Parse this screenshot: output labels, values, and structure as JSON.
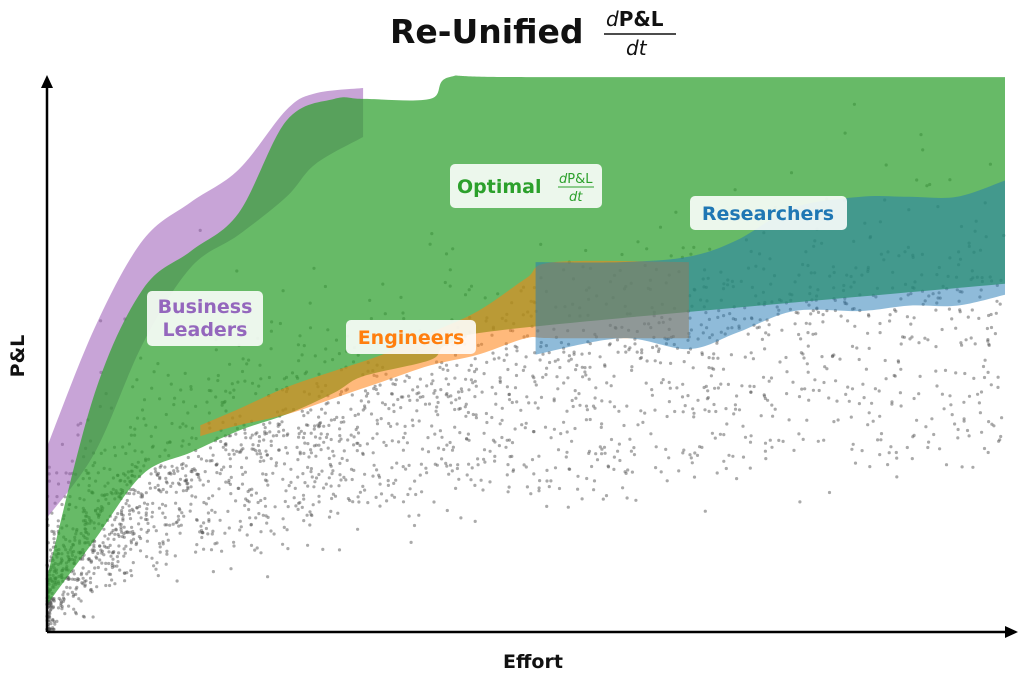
{
  "chart_data": {
    "type": "area",
    "title": {
      "prefix": "Re-Unified",
      "fraction_numerator_italic": "d",
      "fraction_numerator": "P&L",
      "fraction_denominator": "dt"
    },
    "xlabel": "Effort",
    "ylabel": "P&L",
    "xlim": [
      0,
      1
    ],
    "ylim": [
      0,
      1
    ],
    "grid": false,
    "legend": "none",
    "series": [
      {
        "name": "Business Leaders",
        "label_lines": [
          "Business",
          "Leaders"
        ],
        "color": "#9b59b6",
        "x": [
          0.0,
          0.05,
          0.1,
          0.15,
          0.2,
          0.25,
          0.28,
          0.33
        ],
        "upper": [
          0.34,
          0.56,
          0.72,
          0.79,
          0.85,
          0.96,
          0.99,
          1.0
        ],
        "lower": [
          0.21,
          0.33,
          0.53,
          0.67,
          0.73,
          0.8,
          0.86,
          0.91
        ]
      },
      {
        "name": "Optimal",
        "label_prefix": "Optimal",
        "label_fraction_numerator_italic": "d",
        "label_fraction_numerator": "P&L",
        "label_fraction_denominator": "dt",
        "color": "#2ca02c",
        "x": [
          0.0,
          0.05,
          0.1,
          0.15,
          0.2,
          0.25,
          0.3,
          0.33,
          0.4,
          0.42,
          0.5,
          1.0
        ],
        "upper": [
          0.1,
          0.44,
          0.63,
          0.7,
          0.77,
          0.94,
          0.98,
          0.98,
          0.98,
          1.02,
          1.02,
          1.02
        ],
        "lower": [
          0.05,
          0.17,
          0.29,
          0.33,
          0.37,
          0.4,
          0.44,
          0.47,
          0.5,
          0.53,
          0.56,
          0.64
        ]
      },
      {
        "name": "Engineers",
        "label_lines": [
          "Engineers"
        ],
        "color": "#ff7f0e",
        "x": [
          0.16,
          0.2,
          0.25,
          0.3,
          0.35,
          0.4,
          0.45,
          0.5,
          0.53,
          0.67
        ],
        "upper": [
          0.38,
          0.41,
          0.45,
          0.48,
          0.51,
          0.55,
          0.59,
          0.65,
          0.68,
          0.68
        ],
        "lower": [
          0.36,
          0.38,
          0.4,
          0.43,
          0.46,
          0.49,
          0.51,
          0.54,
          0.54,
          0.54
        ]
      },
      {
        "name": "Researchers",
        "label_lines": [
          "Researchers"
        ],
        "color": "#1f77b4",
        "x": [
          0.51,
          0.6,
          0.67,
          0.72,
          0.78,
          0.85,
          0.9,
          0.95,
          1.0
        ],
        "upper": [
          0.68,
          0.68,
          0.69,
          0.72,
          0.78,
          0.8,
          0.8,
          0.8,
          0.83
        ],
        "lower": [
          0.51,
          0.54,
          0.52,
          0.55,
          0.59,
          0.59,
          0.6,
          0.6,
          0.62
        ]
      }
    ],
    "scatter": {
      "color": "#555555",
      "count": 2400,
      "description": "Gray points concentrated below the bands, following a concave rising trend from the origin"
    }
  }
}
